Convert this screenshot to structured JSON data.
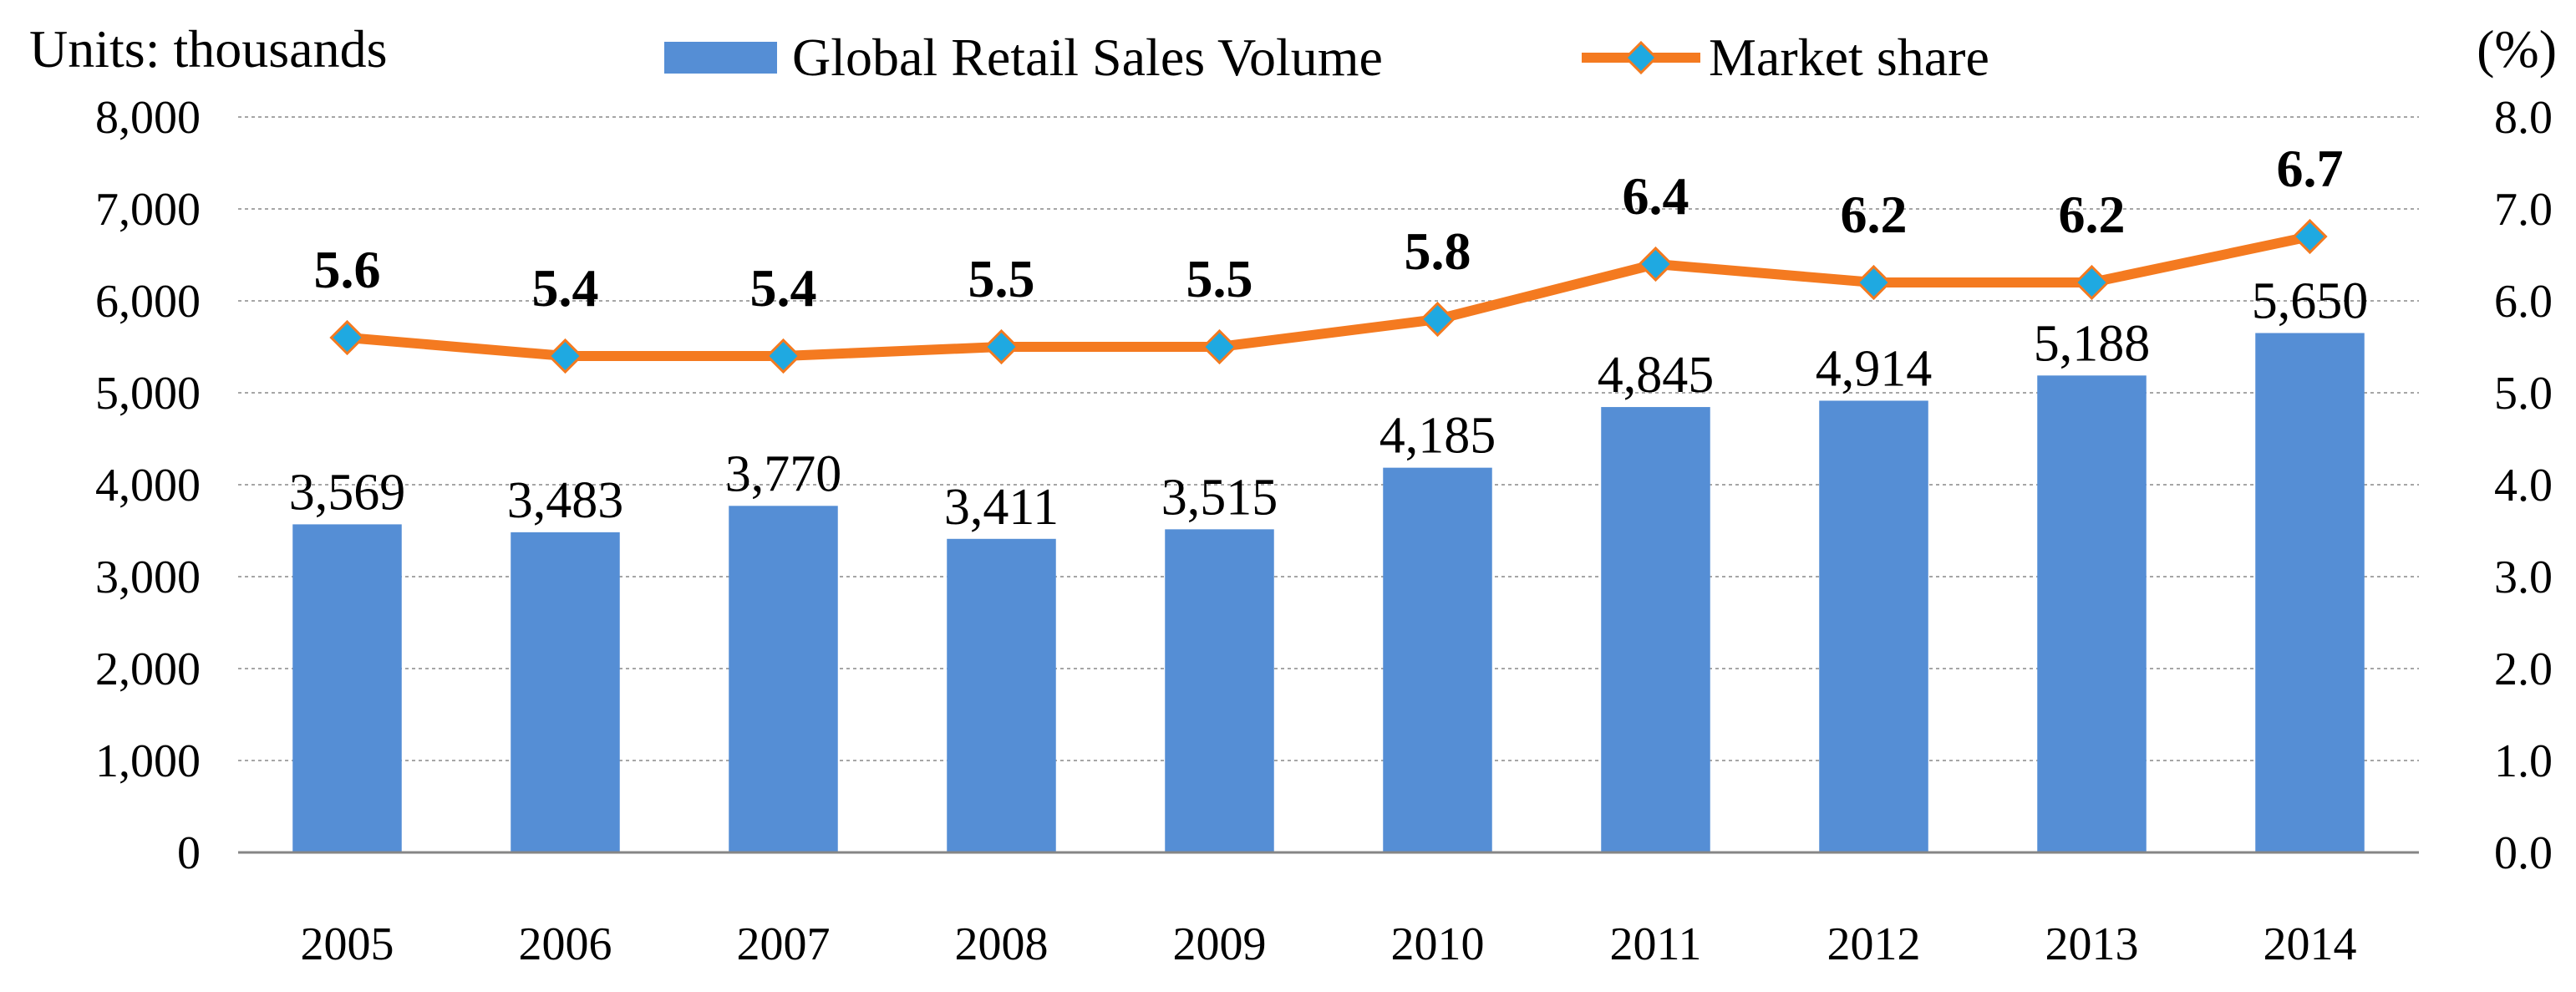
{
  "chart_data": {
    "type": "bar",
    "categories": [
      "2005",
      "2006",
      "2007",
      "2008",
      "2009",
      "2010",
      "2011",
      "2012",
      "2013",
      "2014"
    ],
    "series": [
      {
        "name": "Global Retail  Sales Volume",
        "kind": "bar",
        "axis": "left",
        "values": [
          3569,
          3483,
          3770,
          3411,
          3515,
          4185,
          4845,
          4914,
          5188,
          5650
        ],
        "labels": [
          "3,569",
          "3,483",
          "3,770",
          "3,411",
          "3,515",
          "4,185",
          "4,845",
          "4,914",
          "5,188",
          "5,650"
        ]
      },
      {
        "name": "Market share",
        "kind": "line",
        "axis": "right",
        "values": [
          5.6,
          5.4,
          5.4,
          5.5,
          5.5,
          5.8,
          6.4,
          6.2,
          6.2,
          6.7
        ],
        "labels": [
          "5.6",
          "5.4",
          "5.4",
          "5.5",
          "5.5",
          "5.8",
          "6.4",
          "6.2",
          "6.2",
          "6.7"
        ]
      }
    ],
    "left_axis": {
      "unit_label": "Units: thousands",
      "ylim": [
        0,
        8000
      ],
      "ticks": [
        "0",
        "1,000",
        "2,000",
        "3,000",
        "4,000",
        "5,000",
        "6,000",
        "7,000",
        "8,000"
      ]
    },
    "right_axis": {
      "unit_label": "(%)",
      "ylim": [
        0,
        8
      ],
      "ticks": [
        "0.0",
        "1.0",
        "2.0",
        "3.0",
        "4.0",
        "5.0",
        "6.0",
        "7.0",
        "8.0"
      ]
    },
    "grid": true,
    "legend_position": "top",
    "colors": {
      "bar": "#558ED5",
      "line": "#F47A20",
      "marker": "#1FA9E1",
      "grid": "#A6A6A6"
    }
  }
}
